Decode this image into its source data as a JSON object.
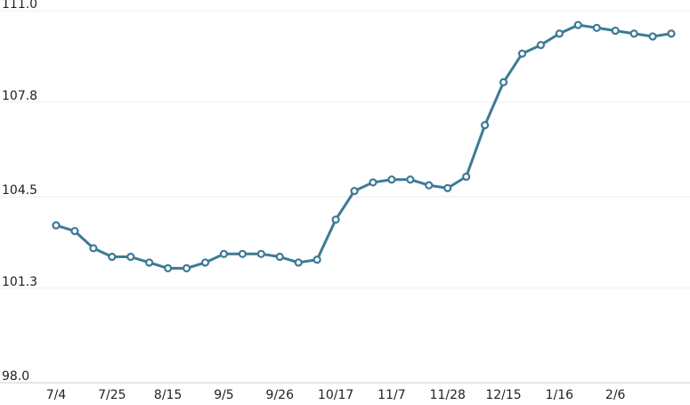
{
  "chart_data": {
    "type": "line",
    "categories": [
      "7/4",
      null,
      null,
      "7/25",
      null,
      null,
      "8/15",
      null,
      null,
      "9/5",
      null,
      null,
      "9/26",
      null,
      null,
      "10/17",
      null,
      null,
      "11/7",
      null,
      null,
      "11/28",
      null,
      null,
      "12/15",
      null,
      null,
      "1/16",
      null,
      null,
      "2/6",
      null,
      null,
      null
    ],
    "series": [
      {
        "color": "#3d7a96",
        "values": [
          103.5,
          103.3,
          102.7,
          102.4,
          102.4,
          102.2,
          102.0,
          102.0,
          102.2,
          102.5,
          102.5,
          102.5,
          102.4,
          102.2,
          102.3,
          103.7,
          104.7,
          105.0,
          105.1,
          105.1,
          104.9,
          104.8,
          105.2,
          107.0,
          108.5,
          109.5,
          109.8,
          110.2,
          110.5,
          110.4,
          110.3,
          110.2,
          110.1,
          110.2
        ]
      }
    ],
    "ylim": [
      98.0,
      111.0
    ],
    "yticks": [
      {
        "value": 98.0,
        "label": "98.0"
      },
      {
        "value": 101.3,
        "label": "101.3"
      },
      {
        "value": 104.5,
        "label": "104.5"
      },
      {
        "value": 107.8,
        "label": "107.8"
      },
      {
        "value": 111.0,
        "label": "111.0"
      }
    ],
    "grid": true
  }
}
